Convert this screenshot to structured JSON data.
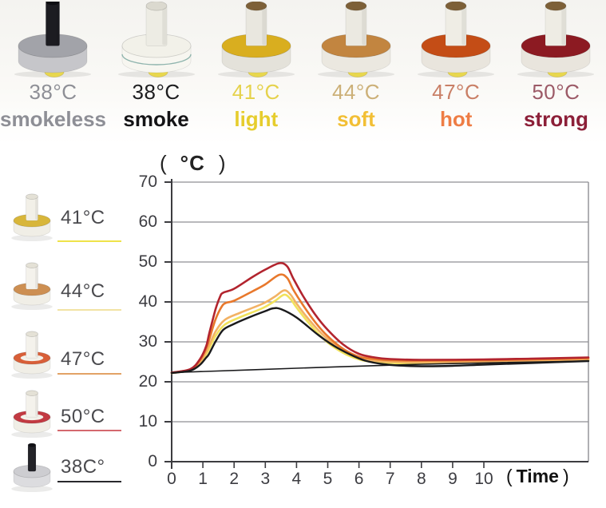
{
  "products": [
    {
      "temp": "38°C",
      "name": "smokeless",
      "temp_color": "#8e8f96",
      "name_color": "#8e8f96",
      "photo": {
        "stick": "#1c1c21",
        "stick_top": "#0e0e12",
        "base_top": "#a2a3a9",
        "base_side": "#c6c6ca",
        "drop": "#e8d74e",
        "slim": true
      }
    },
    {
      "temp": "38°C",
      "name": "smoke",
      "temp_color": "#1d1d1f",
      "name_color": "#141416",
      "photo": {
        "stick": "#edece4",
        "stick_top": "#dbd9cf",
        "base_top": "#f2f1e9",
        "base_side": "#f7f6f0",
        "accent": "#8fb4ad",
        "drop": "#e8d74e"
      }
    },
    {
      "temp": "41°C",
      "name": "light",
      "temp_color": "#e5d24c",
      "name_color": "#e6cd2d",
      "photo": {
        "stick": "#e9e7df",
        "stick_top": "#7d6038",
        "base_top": "#d9ae1f",
        "base_side": "#e4e2da",
        "drop": "#e8d74e"
      }
    },
    {
      "temp": "44°C",
      "name": "soft",
      "temp_color": "#ccb078",
      "name_color": "#f2bf35",
      "photo": {
        "stick": "#ebe9e1",
        "stick_top": "#7d6038",
        "base_top": "#c28540",
        "base_side": "#ebe8e0",
        "drop": "#e8d74e"
      }
    },
    {
      "temp": "47°C",
      "name": "hot",
      "temp_color": "#c97f66",
      "name_color": "#ee7d45",
      "photo": {
        "stick": "#efede5",
        "stick_top": "#7d6038",
        "base_top": "#c44d16",
        "base_side": "#e9e5dd",
        "drop": "#e8d74e"
      }
    },
    {
      "temp": "50°C",
      "name": "strong",
      "temp_color": "#9c5a67",
      "name_color": "#8c1f38",
      "photo": {
        "stick": "#eeece4",
        "stick_top": "#7d6038",
        "base_top": "#8c1a22",
        "base_side": "#e9e5dd",
        "drop": "#e8d74e"
      }
    }
  ],
  "legend": [
    {
      "label": "41°C",
      "line_color": "#efe34a",
      "photo": {
        "stick": "#f2f0e8",
        "stick_top": "#e4e1d6",
        "base_top": "#d8b63a",
        "base_side": "#f0eee6"
      }
    },
    {
      "label": "44°C",
      "line_color": "#f2e3a4",
      "photo": {
        "stick": "#f4f2ec",
        "stick_top": "#e4e1d6",
        "base_top": "#cd8f52",
        "base_side": "#f0eee6"
      }
    },
    {
      "label": "47°C",
      "line_color": "#e2a266",
      "photo": {
        "stick": "#f4f2ec",
        "stick_top": "#e4e1d6",
        "base_top": "#d85f38",
        "base_side": "#f0eee6",
        "inner": "#f3f1ea"
      }
    },
    {
      "label": "50°C",
      "line_color": "#d4686e",
      "photo": {
        "stick": "#f4f2ec",
        "stick_top": "#e4e1d6",
        "base_top": "#c23a42",
        "base_side": "#f0eee6",
        "inner": "#f3f1ea"
      }
    },
    {
      "label": "38C°",
      "line_color": "#28282c",
      "photo": {
        "stick": "#232328",
        "stick_top": "#111116",
        "base_top": "#cdcdd1",
        "base_side": "#dcdcdf",
        "slim": true
      }
    }
  ],
  "chart_data": {
    "type": "line",
    "ylabel": {
      "open": "(",
      "label": "°C",
      "close": ")"
    },
    "xlabel": {
      "open": "(",
      "label": "Time",
      "close": ")"
    },
    "ylim": [
      0,
      70
    ],
    "yticks": [
      0,
      10,
      20,
      30,
      40,
      50,
      60,
      70
    ],
    "xlim": [
      0,
      13.35
    ],
    "xticks": [
      0,
      1,
      2,
      3,
      4,
      5,
      6,
      7,
      8,
      9,
      10
    ],
    "grid": "horizontal",
    "legend_position": "left",
    "axis_color": "#3c3c40",
    "grid_color": "#8f8f93",
    "series": [
      {
        "name": "41°C light",
        "color": "#f1e25c",
        "width": 2.6,
        "points": [
          [
            0,
            22.2
          ],
          [
            0.6,
            22.9
          ],
          [
            0.9,
            24.6
          ],
          [
            1.1,
            26.8
          ],
          [
            1.2,
            28.2
          ],
          [
            1.4,
            31.4
          ],
          [
            1.7,
            34.3
          ],
          [
            2.2,
            36.2
          ],
          [
            2.9,
            38.4
          ],
          [
            3.3,
            40.2
          ],
          [
            3.6,
            41.8
          ],
          [
            3.8,
            40.8
          ],
          [
            4.0,
            38.6
          ],
          [
            4.3,
            35.6
          ],
          [
            4.7,
            32.0
          ],
          [
            5.1,
            29.2
          ],
          [
            5.6,
            26.8
          ],
          [
            6.1,
            25.4
          ],
          [
            6.6,
            24.9
          ],
          [
            7.1,
            24.7
          ],
          [
            8.0,
            24.6
          ],
          [
            10.0,
            24.8
          ],
          [
            11.5,
            25.0
          ],
          [
            13.35,
            25.3
          ]
        ]
      },
      {
        "name": "44°C soft",
        "color": "#f2b264",
        "width": 2.6,
        "points": [
          [
            0,
            22.2
          ],
          [
            0.6,
            23.0
          ],
          [
            0.9,
            24.9
          ],
          [
            1.1,
            27.3
          ],
          [
            1.2,
            29.0
          ],
          [
            1.4,
            32.5
          ],
          [
            1.7,
            35.5
          ],
          [
            2.2,
            37.3
          ],
          [
            2.9,
            39.5
          ],
          [
            3.3,
            41.3
          ],
          [
            3.6,
            42.9
          ],
          [
            3.8,
            41.9
          ],
          [
            4.0,
            39.6
          ],
          [
            4.3,
            36.5
          ],
          [
            4.7,
            32.9
          ],
          [
            5.1,
            30.0
          ],
          [
            5.6,
            27.4
          ],
          [
            6.1,
            25.8
          ],
          [
            6.6,
            25.2
          ],
          [
            7.1,
            25.0
          ],
          [
            8.0,
            24.9
          ],
          [
            10.0,
            25.0
          ],
          [
            11.5,
            25.3
          ],
          [
            13.35,
            25.6
          ]
        ]
      },
      {
        "name": "47°C hot",
        "color": "#e8782c",
        "width": 2.6,
        "points": [
          [
            0,
            22.3
          ],
          [
            0.6,
            23.1
          ],
          [
            0.9,
            25.3
          ],
          [
            1.1,
            28.2
          ],
          [
            1.2,
            30.5
          ],
          [
            1.4,
            35.5
          ],
          [
            1.6,
            38.8
          ],
          [
            1.75,
            39.8
          ],
          [
            2.0,
            40.3
          ],
          [
            2.6,
            42.7
          ],
          [
            3.0,
            44.4
          ],
          [
            3.45,
            46.8
          ],
          [
            3.7,
            46.0
          ],
          [
            3.9,
            43.0
          ],
          [
            4.2,
            39.3
          ],
          [
            4.6,
            34.9
          ],
          [
            5.0,
            31.4
          ],
          [
            5.5,
            28.2
          ],
          [
            6.0,
            26.3
          ],
          [
            6.5,
            25.7
          ],
          [
            7.0,
            25.4
          ],
          [
            8.0,
            25.3
          ],
          [
            10.0,
            25.4
          ],
          [
            11.5,
            25.6
          ],
          [
            13.35,
            25.9
          ]
        ]
      },
      {
        "name": "50°C strong",
        "color": "#b2242e",
        "width": 2.6,
        "points": [
          [
            0,
            22.3
          ],
          [
            0.6,
            23.2
          ],
          [
            0.9,
            25.6
          ],
          [
            1.1,
            28.8
          ],
          [
            1.2,
            32.0
          ],
          [
            1.4,
            38.0
          ],
          [
            1.55,
            41.3
          ],
          [
            1.65,
            42.3
          ],
          [
            2.0,
            43.3
          ],
          [
            2.6,
            46.3
          ],
          [
            3.0,
            48.1
          ],
          [
            3.45,
            49.7
          ],
          [
            3.7,
            48.9
          ],
          [
            3.9,
            45.8
          ],
          [
            4.2,
            41.6
          ],
          [
            4.6,
            36.8
          ],
          [
            5.0,
            33.0
          ],
          [
            5.5,
            29.3
          ],
          [
            6.0,
            27.0
          ],
          [
            6.5,
            26.1
          ],
          [
            7.0,
            25.7
          ],
          [
            8.0,
            25.5
          ],
          [
            10.0,
            25.6
          ],
          [
            11.5,
            25.8
          ],
          [
            13.35,
            26.1
          ]
        ]
      },
      {
        "name": "38C° smoke",
        "color": "#1a1a1c",
        "width": 2.4,
        "points": [
          [
            0,
            22.2
          ],
          [
            0.6,
            22.8
          ],
          [
            0.9,
            24.2
          ],
          [
            1.1,
            26.0
          ],
          [
            1.2,
            27.0
          ],
          [
            1.4,
            30.0
          ],
          [
            1.65,
            33.0
          ],
          [
            2.0,
            34.5
          ],
          [
            2.5,
            36.2
          ],
          [
            3.0,
            37.7
          ],
          [
            3.25,
            38.4
          ],
          [
            3.5,
            38.2
          ],
          [
            4.0,
            36.1
          ],
          [
            4.7,
            31.7
          ],
          [
            5.2,
            29.0
          ],
          [
            5.7,
            26.9
          ],
          [
            6.2,
            25.3
          ],
          [
            6.8,
            24.4
          ],
          [
            7.5,
            24.0
          ],
          [
            8.2,
            23.9
          ],
          [
            9.0,
            24.0
          ],
          [
            10.0,
            24.3
          ],
          [
            11.5,
            24.7
          ],
          [
            13.35,
            25.2
          ]
        ]
      },
      {
        "name": "baseline",
        "color": "#1a1a1c",
        "width": 1.6,
        "points": [
          [
            0,
            22.3
          ],
          [
            4.0,
            23.4
          ],
          [
            8.0,
            24.4
          ],
          [
            13.35,
            25.2
          ]
        ]
      }
    ]
  }
}
